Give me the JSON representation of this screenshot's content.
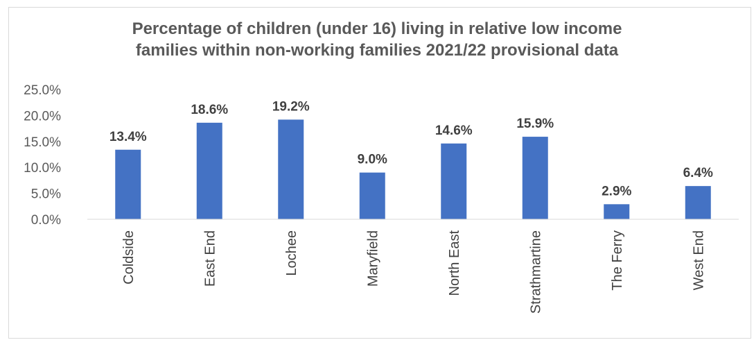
{
  "chart_data": {
    "type": "bar",
    "title": "Percentage of children (under 16) living in relative low income\nfamilies within non-working families 2021/22 provisional data",
    "categories": [
      "Coldside",
      "East End",
      "Lochee",
      "Maryfield",
      "North East",
      "Strathmartine",
      "The Ferry",
      "West End"
    ],
    "values": [
      13.4,
      18.6,
      19.2,
      9.0,
      14.6,
      15.9,
      2.9,
      6.4
    ],
    "data_labels": [
      "13.4%",
      "18.6%",
      "19.2%",
      "9.0%",
      "14.6%",
      "15.9%",
      "2.9%",
      "6.4%"
    ],
    "y_ticks": [
      0,
      5,
      10,
      15,
      20,
      25
    ],
    "y_tick_labels": [
      "0.0%",
      "5.0%",
      "10.0%",
      "15.0%",
      "20.0%",
      "25.0%"
    ],
    "ylim": [
      0,
      25
    ],
    "xlabel": "",
    "ylabel": "",
    "grid": false,
    "legend": "none",
    "bar_color": "#4472c4"
  }
}
